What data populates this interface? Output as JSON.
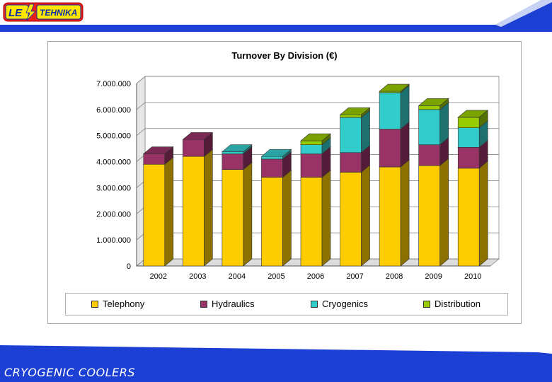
{
  "logo": {
    "text": "LE TEHNIKA",
    "part1": "LE",
    "part2": "TEHNIKA"
  },
  "footer": {
    "title": "CRYOGENIC COOLERS"
  },
  "colors": {
    "band": "#1c3fd4",
    "Telephony": "#ffcc00",
    "Hydraulics": "#993366",
    "Cryogenics": "#33cccc",
    "Distribution": "#99cc00"
  },
  "chart_data": {
    "type": "bar",
    "stacked": true,
    "three_d": true,
    "title": "Turnover By Division (€)",
    "xlabel": "",
    "ylabel": "",
    "ylim": [
      0,
      7000000
    ],
    "yticks": [
      0,
      1000000,
      2000000,
      3000000,
      4000000,
      5000000,
      6000000,
      7000000
    ],
    "ytick_labels": [
      "0",
      "1.000.000",
      "2.000.000",
      "3.000.000",
      "4.000.000",
      "5.000.000",
      "6.000.000",
      "7.000.000"
    ],
    "grid": true,
    "legend_position": "bottom",
    "categories": [
      "2002",
      "2003",
      "2004",
      "2005",
      "2006",
      "2007",
      "2008",
      "2009",
      "2010"
    ],
    "series": [
      {
        "name": "Telephony",
        "values": [
          3900000,
          4200000,
          3700000,
          3400000,
          3400000,
          3600000,
          3800000,
          3850000,
          3750000
        ]
      },
      {
        "name": "Hydraulics",
        "values": [
          400000,
          650000,
          600000,
          700000,
          900000,
          750000,
          1450000,
          800000,
          800000
        ]
      },
      {
        "name": "Cryogenics",
        "values": [
          0,
          0,
          80000,
          100000,
          350000,
          1350000,
          1400000,
          1350000,
          750000
        ]
      },
      {
        "name": "Distribution",
        "values": [
          0,
          0,
          0,
          0,
          150000,
          100000,
          50000,
          150000,
          400000
        ]
      }
    ]
  }
}
